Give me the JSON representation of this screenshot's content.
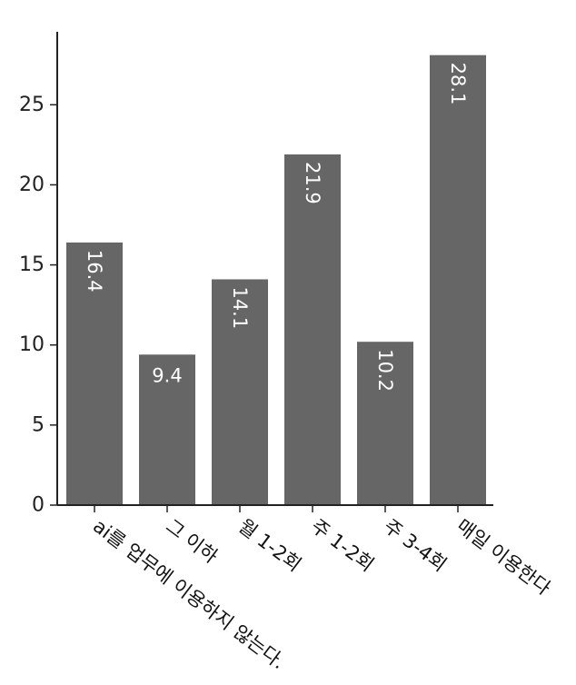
{
  "chart_data": {
    "type": "bar",
    "categories": [
      "ai를 업무에 이용하지 않는다.",
      "그 이하",
      "월 1-2회",
      "주 1-2회",
      "주 3-4회",
      "매일 이용한다"
    ],
    "values": [
      16.4,
      9.4,
      14.1,
      21.9,
      10.2,
      28.1
    ],
    "value_labels": [
      "16.4",
      "9.4",
      "14.1",
      "21.9",
      "10.2",
      "28.1"
    ],
    "value_label_rotated": [
      true,
      false,
      true,
      true,
      true,
      true
    ],
    "y_ticks": [
      0,
      5,
      10,
      15,
      20,
      25
    ],
    "ylim": [
      0,
      29.5
    ],
    "bar_color": "#666666",
    "title": "",
    "xlabel": "",
    "ylabel": "",
    "grid": false
  }
}
